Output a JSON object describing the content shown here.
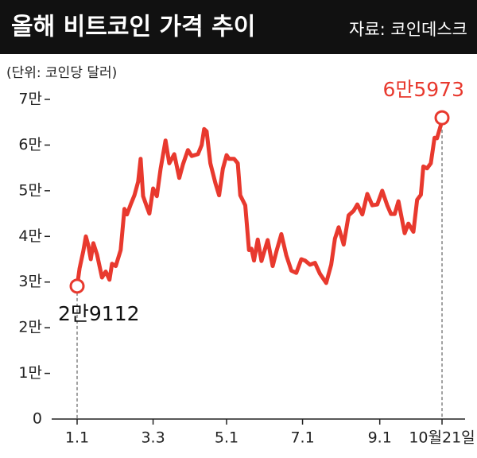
{
  "chart_data": {
    "type": "line",
    "title": "올해 비트코인 가격 추이",
    "source": "자료: 코인데스크",
    "unit": "(단위: 코인당 달러)",
    "color": "#e8392e",
    "ylim": [
      0,
      70000
    ],
    "yticks": [
      0,
      {
        "value": 10000,
        "label": "1만"
      },
      {
        "value": 20000,
        "label": "2만"
      },
      {
        "value": 30000,
        "label": "3만"
      },
      {
        "value": 40000,
        "label": "4만"
      },
      {
        "value": 50000,
        "label": "5만"
      },
      {
        "value": 60000,
        "label": "6만"
      },
      {
        "value": 70000,
        "label": "7만"
      }
    ],
    "xticks": [
      "1.1",
      "3.3",
      "5.1",
      "7.1",
      "9.1",
      {
        "value": "10.21",
        "label": "10월21일"
      }
    ],
    "x": [
      "1.1",
      "1.3",
      "1.6",
      "1.8",
      "1.10",
      "1.12",
      "1.14",
      "1.17",
      "1.21",
      "1.24",
      "1.27",
      "1.29",
      "2.1",
      "2.5",
      "2.8",
      "2.10",
      "2.13",
      "2.16",
      "2.19",
      "2.21",
      "2.23",
      "2.26",
      "2.28",
      "3.3",
      "3.6",
      "3.9",
      "3.13",
      "3.16",
      "3.20",
      "3.24",
      "3.27",
      "3.31",
      "4.3",
      "4.8",
      "4.11",
      "4.13",
      "4.15",
      "4.18",
      "4.22",
      "4.25",
      "4.28",
      "5.1",
      "5.3",
      "5.7",
      "5.10",
      "5.12",
      "5.16",
      "5.19",
      "5.21",
      "5.23",
      "5.26",
      "5.29",
      "6.3",
      "6.7",
      "6.10",
      "6.14",
      "6.18",
      "6.22",
      "6.26",
      "6.30",
      "7.3",
      "7.7",
      "7.11",
      "7.15",
      "7.20",
      "7.24",
      "7.27",
      "7.30",
      "8.3",
      "8.7",
      "8.11",
      "8.14",
      "8.18",
      "8.22",
      "8.26",
      "8.30",
      "9.3",
      "9.7",
      "9.10",
      "9.13",
      "9.16",
      "9.21",
      "9.24",
      "9.28",
      "10.1",
      "10.4",
      "10.6",
      "10.9",
      "10.12",
      "10.15",
      "10.17",
      "10.20",
      "10.21"
    ],
    "values": [
      29112,
      33000,
      36800,
      40000,
      38000,
      35000,
      38500,
      36000,
      31000,
      32300,
      30500,
      34000,
      33500,
      37000,
      46000,
      44800,
      47000,
      49000,
      52000,
      57000,
      48800,
      46500,
      45000,
      50500,
      48800,
      54800,
      61000,
      56000,
      58000,
      52800,
      55800,
      58900,
      57600,
      58000,
      60000,
      63500,
      63000,
      56000,
      51700,
      49000,
      54800,
      57800,
      57000,
      57000,
      56000,
      49000,
      46800,
      37000,
      37300,
      34700,
      39300,
      34600,
      39200,
      33500,
      36700,
      40500,
      35800,
      32500,
      32000,
      35000,
      34700,
      33800,
      34200,
      31800,
      29800,
      33800,
      39500,
      42000,
      38200,
      44600,
      45600,
      47000,
      44800,
      49300,
      46800,
      47000,
      50000,
      46800,
      44900,
      44900,
      47700,
      40700,
      42800,
      41000,
      48000,
      49100,
      55300,
      54900,
      56000,
      61600,
      61500,
      64300,
      65973
    ],
    "value_labels": [
      "2만9112",
      null,
      null,
      null,
      null,
      null,
      null,
      null,
      null,
      null,
      null,
      null,
      null,
      null,
      null,
      null,
      null,
      null,
      null,
      null,
      null,
      null,
      null,
      null,
      null,
      null,
      null,
      null,
      null,
      null,
      null,
      null,
      null,
      null,
      null,
      null,
      null,
      null,
      null,
      null,
      null,
      null,
      null,
      null,
      null,
      null,
      null,
      null,
      null,
      null,
      null,
      null,
      null,
      null,
      null,
      null,
      null,
      null,
      null,
      null,
      null,
      null,
      null,
      null,
      null,
      null,
      null,
      null,
      null,
      null,
      null,
      null,
      null,
      null,
      null,
      null,
      null,
      null,
      null,
      null,
      null,
      null,
      null,
      null,
      null,
      null,
      null,
      null,
      null,
      null,
      null,
      null,
      "6만5973"
    ]
  }
}
